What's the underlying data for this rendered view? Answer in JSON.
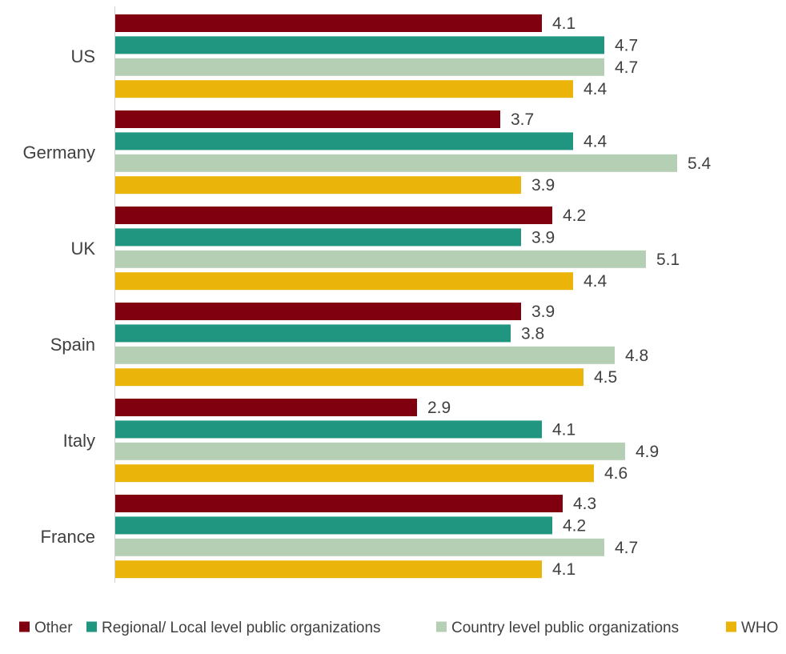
{
  "chart_data": {
    "type": "bar",
    "orientation": "horizontal",
    "categories": [
      "US",
      "Germany",
      "UK",
      "Spain",
      "Italy",
      "France"
    ],
    "series": [
      {
        "name": "Other",
        "color": "#800010",
        "values": [
          4.1,
          3.7,
          4.2,
          3.9,
          2.9,
          4.3
        ]
      },
      {
        "name": "Regional/ Local level public organizations",
        "color": "#209680",
        "values": [
          4.7,
          4.4,
          3.9,
          3.8,
          4.1,
          4.2
        ]
      },
      {
        "name": "Country level public organizations",
        "color": "#b4cfb4",
        "values": [
          4.7,
          5.4,
          5.1,
          4.8,
          4.9,
          4.7
        ]
      },
      {
        "name": "WHO",
        "color": "#ebb40a",
        "values": [
          4.4,
          3.9,
          4.4,
          4.5,
          4.6,
          4.1
        ]
      }
    ],
    "xlim": [
      0,
      5.4
    ],
    "grid": false,
    "legend_position": "bottom",
    "data_labels": true
  }
}
